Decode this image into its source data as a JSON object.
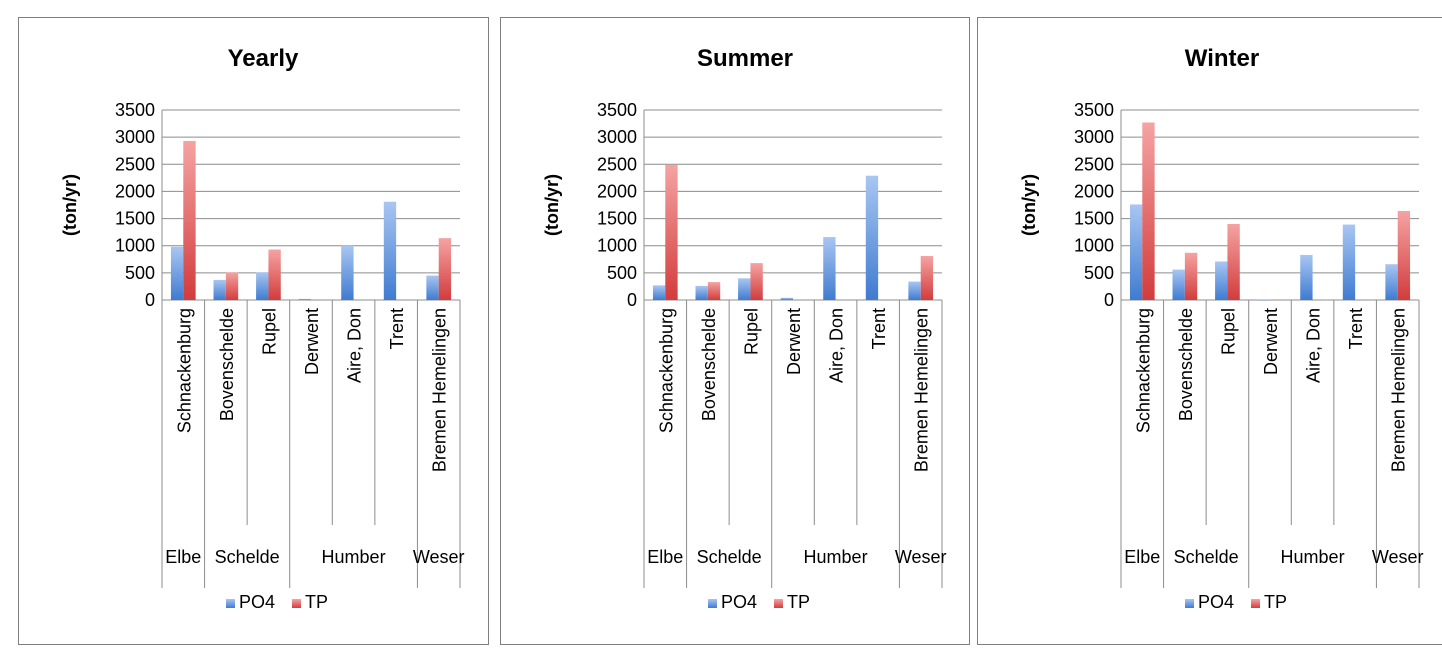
{
  "chart_data": [
    {
      "type": "bar",
      "title": "Yearly",
      "ylabel": "(ton/yr)",
      "xlabel": "",
      "ylim": [
        0,
        3500
      ],
      "yticks": [
        0,
        500,
        1000,
        1500,
        2000,
        2500,
        3000,
        3500
      ],
      "grid": true,
      "legend": "bottom",
      "categories": [
        "Schnackenburg",
        "Bovenschelde",
        "Rupel",
        "Derwent",
        "Aire, Don",
        "Trent",
        "Bremen Hemelingen"
      ],
      "groups": [
        {
          "label": "Elbe",
          "members": [
            "Schnackenburg"
          ]
        },
        {
          "label": "Schelde",
          "members": [
            "Bovenschelde",
            "Rupel"
          ]
        },
        {
          "label": "Humber",
          "members": [
            "Derwent",
            "Aire, Don",
            "Trent"
          ]
        },
        {
          "label": "Weser",
          "members": [
            "Bremen Hemelingen"
          ]
        }
      ],
      "series": [
        {
          "name": "PO4",
          "color": "#4f81bd",
          "values": [
            980,
            370,
            510,
            20,
            1000,
            1810,
            450
          ]
        },
        {
          "name": "TP",
          "color": "#c0504d",
          "values": [
            2930,
            510,
            930,
            null,
            null,
            null,
            1140
          ]
        }
      ]
    },
    {
      "type": "bar",
      "title": "Summer",
      "ylabel": "(ton/yr)",
      "xlabel": "",
      "ylim": [
        0,
        3500
      ],
      "yticks": [
        0,
        500,
        1000,
        1500,
        2000,
        2500,
        3000,
        3500
      ],
      "grid": true,
      "legend": "bottom",
      "categories": [
        "Schnackenburg",
        "Bovenschelde",
        "Rupel",
        "Derwent",
        "Aire, Don",
        "Trent",
        "Bremen Hemelingen"
      ],
      "groups": [
        {
          "label": "Elbe",
          "members": [
            "Schnackenburg"
          ]
        },
        {
          "label": "Schelde",
          "members": [
            "Bovenschelde",
            "Rupel"
          ]
        },
        {
          "label": "Humber",
          "members": [
            "Derwent",
            "Aire, Don",
            "Trent"
          ]
        },
        {
          "label": "Weser",
          "members": [
            "Bremen Hemelingen"
          ]
        }
      ],
      "series": [
        {
          "name": "PO4",
          "color": "#4f81bd",
          "values": [
            270,
            260,
            400,
            40,
            1160,
            2290,
            340
          ]
        },
        {
          "name": "TP",
          "color": "#c0504d",
          "values": [
            2490,
            330,
            680,
            null,
            null,
            null,
            810
          ]
        }
      ]
    },
    {
      "type": "bar",
      "title": "Winter",
      "ylabel": "(ton/yr)",
      "xlabel": "",
      "ylim": [
        0,
        3500
      ],
      "yticks": [
        0,
        500,
        1000,
        1500,
        2000,
        2500,
        3000,
        3500
      ],
      "grid": true,
      "legend": "bottom",
      "categories": [
        "Schnackenburg",
        "Bovenschelde",
        "Rupel",
        "Derwent",
        "Aire, Don",
        "Trent",
        "Bremen Hemelingen"
      ],
      "groups": [
        {
          "label": "Elbe",
          "members": [
            "Schnackenburg"
          ]
        },
        {
          "label": "Schelde",
          "members": [
            "Bovenschelde",
            "Rupel"
          ]
        },
        {
          "label": "Humber",
          "members": [
            "Derwent",
            "Aire, Don",
            "Trent"
          ]
        },
        {
          "label": "Weser",
          "members": [
            "Bremen Hemelingen"
          ]
        }
      ],
      "series": [
        {
          "name": "PO4",
          "color": "#4f81bd",
          "values": [
            1760,
            560,
            710,
            10,
            830,
            1390,
            660
          ]
        },
        {
          "name": "TP",
          "color": "#c0504d",
          "values": [
            3270,
            870,
            1400,
            null,
            null,
            null,
            1640
          ]
        }
      ]
    }
  ]
}
